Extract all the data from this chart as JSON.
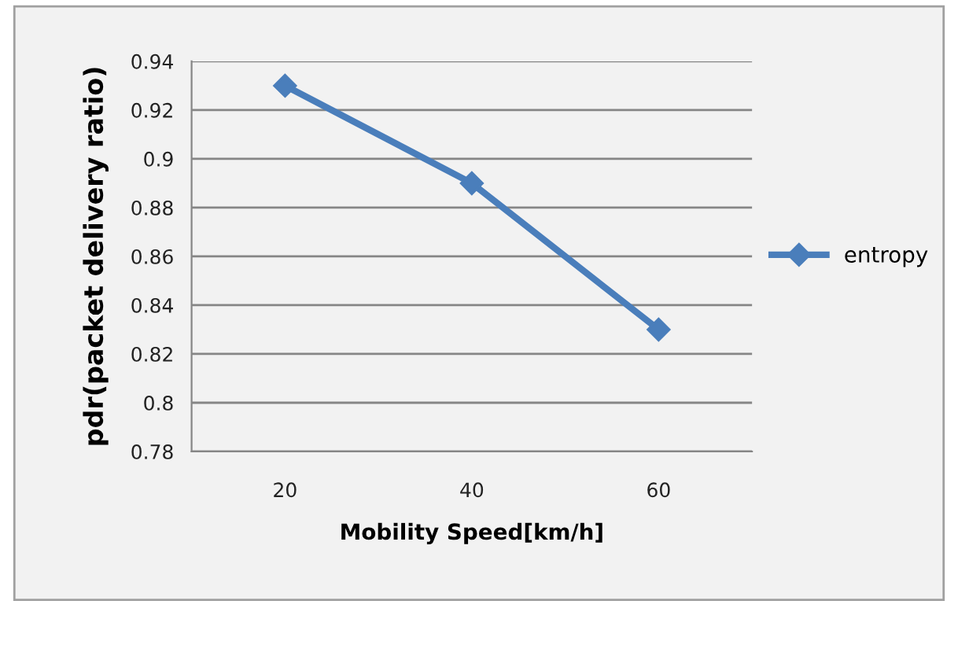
{
  "chart_data": {
    "type": "line",
    "xlabel": "Mobility Speed[km/h]",
    "ylabel": "pdr(packet delivery ratio)",
    "categories": [
      "20",
      "40",
      "60"
    ],
    "series": [
      {
        "name": "entropy",
        "color": "#4a7ebb",
        "values": [
          0.93,
          0.89,
          0.83
        ]
      }
    ],
    "ylim": [
      0.78,
      0.94
    ],
    "yticks": [
      0.78,
      {
        "value": 0.8,
        "label": "0.8"
      },
      0.82,
      0.84,
      0.86,
      0.88,
      {
        "value": 0.9,
        "label": "0.9"
      },
      0.92,
      0.94
    ],
    "grid": "y",
    "legend": "right",
    "marker": "diamond",
    "line_style": "solid"
  }
}
